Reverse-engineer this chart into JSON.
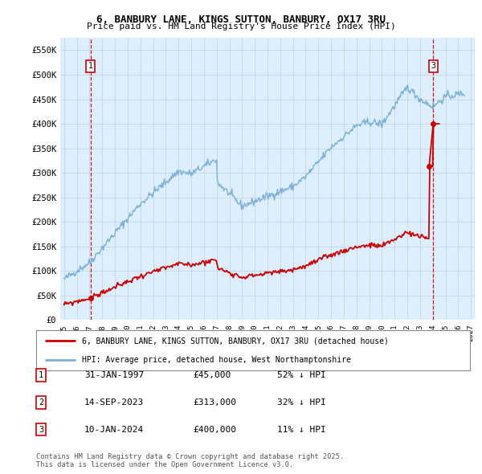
{
  "title": "6, BANBURY LANE, KINGS SUTTON, BANBURY, OX17 3RU",
  "subtitle": "Price paid vs. HM Land Registry's House Price Index (HPI)",
  "ylim": [
    0,
    575000
  ],
  "xlim_start": 1994.7,
  "xlim_end": 2027.3,
  "yticks": [
    0,
    50000,
    100000,
    150000,
    200000,
    250000,
    300000,
    350000,
    400000,
    450000,
    500000,
    550000
  ],
  "ytick_labels": [
    "£0",
    "£50K",
    "£100K",
    "£150K",
    "£200K",
    "£250K",
    "£300K",
    "£350K",
    "£400K",
    "£450K",
    "£500K",
    "£550K"
  ],
  "xticks": [
    1995,
    1996,
    1997,
    1998,
    1999,
    2000,
    2001,
    2002,
    2003,
    2004,
    2005,
    2006,
    2007,
    2008,
    2009,
    2010,
    2011,
    2012,
    2013,
    2014,
    2015,
    2016,
    2017,
    2018,
    2019,
    2020,
    2021,
    2022,
    2023,
    2024,
    2025,
    2026,
    2027
  ],
  "sale1_x": 1997.08,
  "sale1_y": 45000,
  "sale1_label": "1",
  "sale2_x": 2023.71,
  "sale2_y": 313000,
  "sale2_label": "2",
  "sale3_x": 2024.03,
  "sale3_y": 400000,
  "sale3_label": "3",
  "sale_color": "#cc0000",
  "hpi_color": "#7ab0d4",
  "bg_color": "#ddeeff",
  "grid_color": "#c8daea",
  "hatch_start": 2025.0,
  "legend_line1": "6, BANBURY LANE, KINGS SUTTON, BANBURY, OX17 3RU (detached house)",
  "legend_line2": "HPI: Average price, detached house, West Northamptonshire",
  "table_entries": [
    {
      "num": "1",
      "date": "31-JAN-1997",
      "price": "£45,000",
      "hpi": "52% ↓ HPI"
    },
    {
      "num": "2",
      "date": "14-SEP-2023",
      "price": "£313,000",
      "hpi": "32% ↓ HPI"
    },
    {
      "num": "3",
      "date": "10-JAN-2024",
      "price": "£400,000",
      "hpi": "11% ↓ HPI"
    }
  ],
  "footer": "Contains HM Land Registry data © Crown copyright and database right 2025.\nThis data is licensed under the Open Government Licence v3.0."
}
